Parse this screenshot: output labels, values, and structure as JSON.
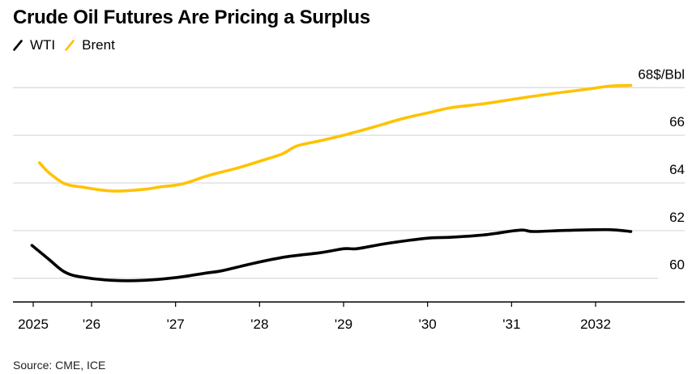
{
  "header": {
    "title": "Crude Oil Futures Are Pricing a Surplus",
    "source": "Source: CME, ICE"
  },
  "legend": [
    {
      "name": "WTI",
      "color": "#000000",
      "icon": "slash-line-icon"
    },
    {
      "name": "Brent",
      "color": "#FFC200",
      "icon": "slash-line-icon"
    }
  ],
  "chart_data": {
    "type": "line",
    "title": "Crude Oil Futures Are Pricing a Surplus",
    "xlabel": "",
    "ylabel": "$/Bbl",
    "y_unit_label": "68$/Bbl",
    "ylim": [
      59.0,
      68.5
    ],
    "xlim": [
      2025.0,
      2032.8
    ],
    "grid": true,
    "legend_position": "top-left",
    "y_axis_side": "right",
    "yticks": [
      60,
      62,
      64,
      66,
      68
    ],
    "ytick_labels": [
      "60",
      "62",
      "64",
      "66",
      "68$/Bbl"
    ],
    "xticks": [
      2025.29,
      2026,
      2027,
      2028,
      2029,
      2030,
      2031,
      2032
    ],
    "xtick_labels": [
      "2025",
      "'26",
      "'27",
      "'28",
      "'29",
      "'30",
      "'31",
      "2032"
    ],
    "series": [
      {
        "name": "WTI",
        "color": "#000000",
        "x": [
          2025.29,
          2025.49,
          2025.68,
          2025.88,
          2026.25,
          2026.62,
          2026.99,
          2027.37,
          2027.56,
          2027.93,
          2028.32,
          2028.72,
          2029.01,
          2029.16,
          2029.5,
          2029.99,
          2030.28,
          2030.68,
          2031.1,
          2031.26,
          2031.66,
          2032.15,
          2032.42
        ],
        "values": [
          61.38,
          60.8,
          60.26,
          60.05,
          59.91,
          59.91,
          60.02,
          60.22,
          60.32,
          60.63,
          60.9,
          61.07,
          61.24,
          61.24,
          61.45,
          61.68,
          61.72,
          61.82,
          62.02,
          61.96,
          62.01,
          62.04,
          61.96
        ]
      },
      {
        "name": "Brent",
        "color": "#FFC200",
        "x": [
          2025.38,
          2025.49,
          2025.68,
          2025.88,
          2026.25,
          2026.62,
          2026.81,
          2027.08,
          2027.4,
          2027.75,
          2028.1,
          2028.27,
          2028.45,
          2028.72,
          2029.04,
          2029.36,
          2029.7,
          2029.99,
          2030.28,
          2030.68,
          2031.07,
          2031.46,
          2031.85,
          2032.15,
          2032.42
        ],
        "values": [
          64.85,
          64.44,
          63.97,
          63.83,
          63.66,
          63.73,
          63.83,
          63.96,
          64.32,
          64.64,
          65.02,
          65.22,
          65.56,
          65.77,
          66.04,
          66.35,
          66.7,
          66.93,
          67.16,
          67.33,
          67.54,
          67.74,
          67.91,
          68.06,
          68.1
        ]
      }
    ]
  }
}
